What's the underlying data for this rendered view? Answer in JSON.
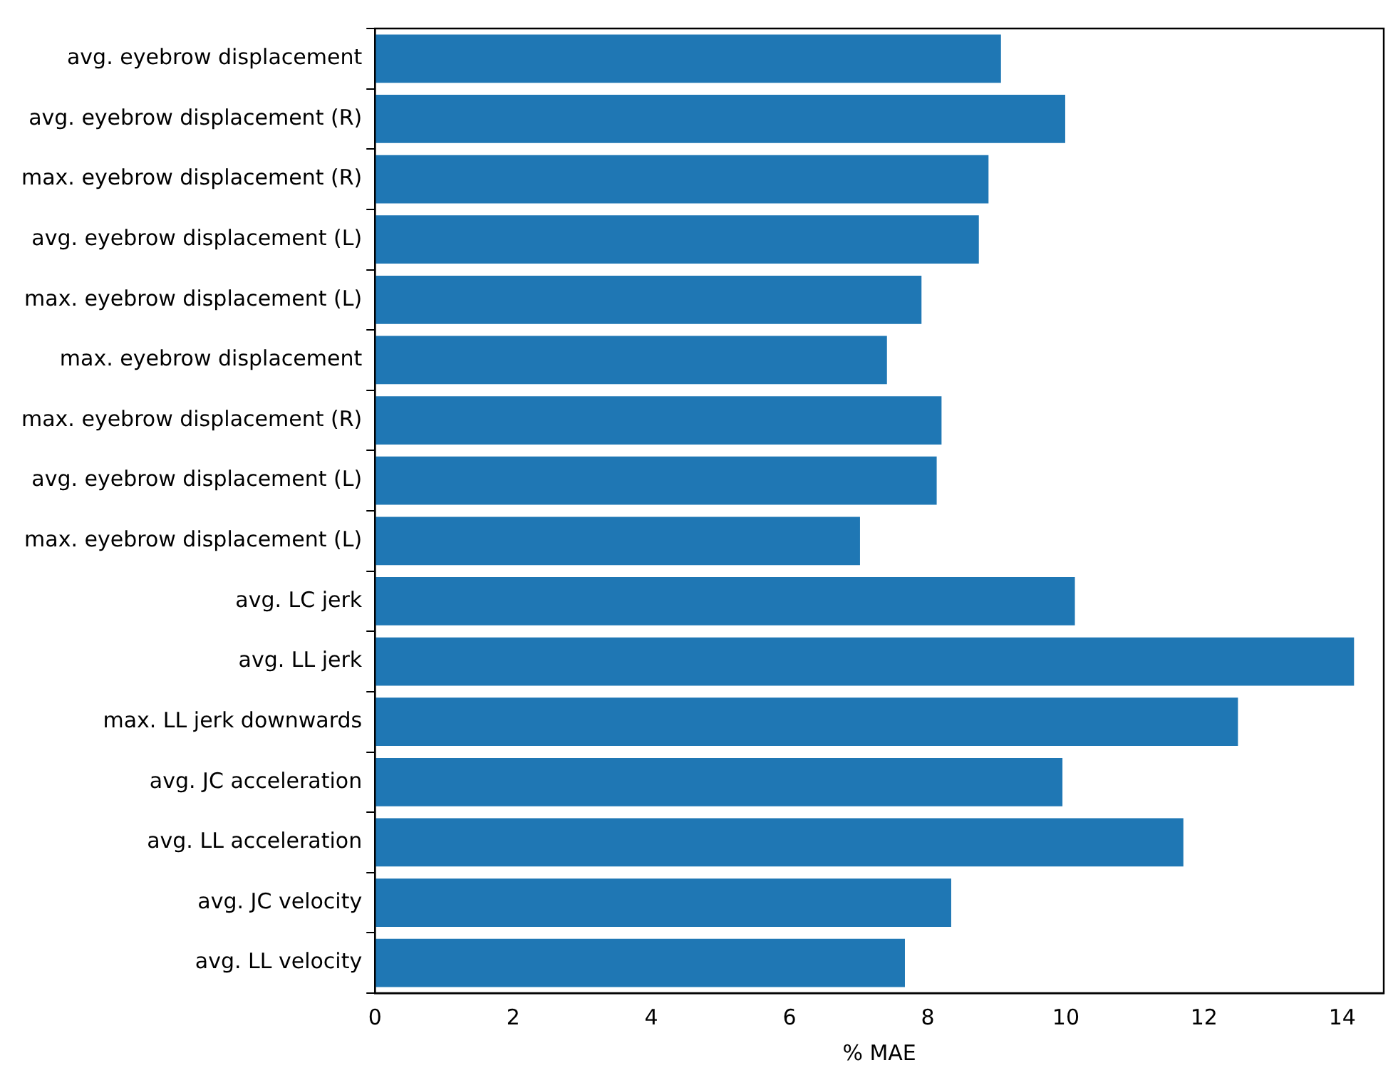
{
  "chart_data": {
    "type": "bar",
    "orientation": "horizontal",
    "xlabel": "% MAE",
    "categories": [
      "avg. eyebrow displacement",
      "avg. eyebrow displacement (R)",
      "max. eyebrow displacement (R)",
      "avg. eyebrow displacement (L)",
      "max. eyebrow displacement (L)",
      "max. eyebrow displacement",
      "max. eyebrow displacement (R)",
      "avg. eyebrow displacement (L)",
      "max. eyebrow displacement (L)",
      "avg. LC jerk",
      "avg. LL jerk",
      "max. LL jerk downwards",
      "avg. JC acceleration",
      "avg. LL acceleration",
      "avg. JC velocity",
      "avg. LL velocity"
    ],
    "values": [
      9.06,
      9.99,
      8.88,
      8.74,
      7.91,
      7.41,
      8.2,
      8.13,
      7.02,
      10.13,
      14.17,
      12.49,
      9.95,
      11.7,
      8.34,
      7.67
    ],
    "color": "#1f77b4",
    "xlim": [
      0,
      14.6
    ],
    "xticks": [
      0,
      2,
      4,
      6,
      8,
      10,
      12,
      14
    ],
    "grid": false,
    "legend": false
  }
}
